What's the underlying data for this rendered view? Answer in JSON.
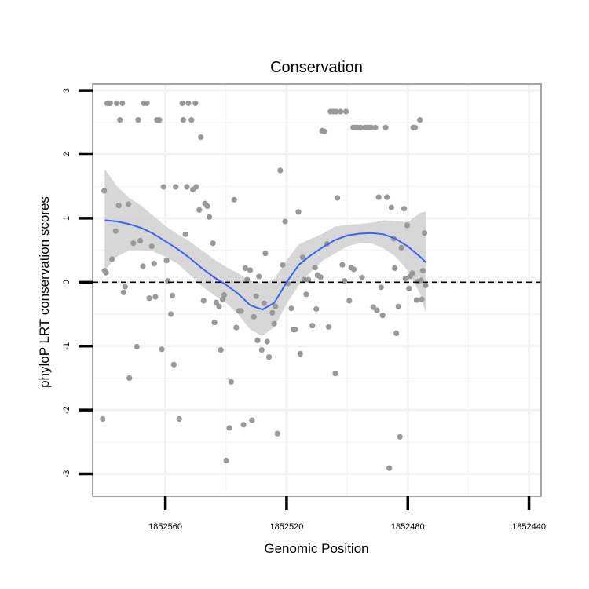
{
  "chart_data": {
    "type": "scatter",
    "title": "Conservation",
    "xlabel": "Genomic Position",
    "ylabel": "phyloP LRT conservation scores",
    "x_reversed": true,
    "xlim": [
      1852584,
      1852436
    ],
    "ylim": [
      -3.35,
      3.1
    ],
    "x_ticks": [
      1852560,
      1852520,
      1852480,
      1852440
    ],
    "y_ticks": [
      -3,
      -2,
      -1,
      0,
      1,
      2,
      3
    ],
    "reference_line": {
      "y": 0,
      "style": "dashed"
    },
    "colors": {
      "points": "#999999",
      "smooth_line": "#3366ff",
      "ribbon": "#d0d0d0",
      "panel_border": "#888888",
      "grid": "#f2f2f2",
      "ticks": "#000000"
    },
    "points": [
      [
        1852580.7,
        -2.14
      ],
      [
        1852580.2,
        1.43
      ],
      [
        1852580.0,
        0.18
      ],
      [
        1852579.6,
        0.15
      ],
      [
        1852579.2,
        2.8
      ],
      [
        1852578.6,
        2.8
      ],
      [
        1852578.2,
        2.8
      ],
      [
        1852577.6,
        0.36
      ],
      [
        1852576.4,
        0.8
      ],
      [
        1852576.1,
        2.8
      ],
      [
        1852575.4,
        1.2
      ],
      [
        1852575.0,
        2.54
      ],
      [
        1852574.2,
        2.8
      ],
      [
        1852573.8,
        -0.16
      ],
      [
        1852573.3,
        -0.07
      ],
      [
        1852572.2,
        1.22
      ],
      [
        1852571.9,
        -1.5
      ],
      [
        1852570.6,
        0.61
      ],
      [
        1852569.4,
        -1.01
      ],
      [
        1852569.0,
        2.54
      ],
      [
        1852568.3,
        0.65
      ],
      [
        1852567.4,
        0.25
      ],
      [
        1852567.1,
        2.8
      ],
      [
        1852566.1,
        2.8
      ],
      [
        1852565.3,
        -0.25
      ],
      [
        1852564.5,
        0.56
      ],
      [
        1852563.7,
        0.29
      ],
      [
        1852563.3,
        -0.23
      ],
      [
        1852562.8,
        2.54
      ],
      [
        1852562.0,
        2.54
      ],
      [
        1852561.2,
        -1.05
      ],
      [
        1852560.6,
        1.49
      ],
      [
        1852559.6,
        0.34
      ],
      [
        1852559.2,
        0.02
      ],
      [
        1852558.2,
        -0.5
      ],
      [
        1852557.7,
        -0.21
      ],
      [
        1852557.2,
        -1.29
      ],
      [
        1852556.6,
        1.49
      ],
      [
        1852555.4,
        -2.14
      ],
      [
        1852554.4,
        2.8
      ],
      [
        1852554.1,
        2.54
      ],
      [
        1852553.4,
        0.75
      ],
      [
        1852552.9,
        1.49
      ],
      [
        1852552.4,
        2.8
      ],
      [
        1852551.4,
        2.54
      ],
      [
        1852550.9,
        1.45
      ],
      [
        1852550.1,
        2.8
      ],
      [
        1852549.8,
        1.49
      ],
      [
        1852548.8,
        1.13
      ],
      [
        1852548.3,
        2.27
      ],
      [
        1852547.4,
        -0.29
      ],
      [
        1852546.9,
        1.23
      ],
      [
        1852546.1,
        1.19
      ],
      [
        1852545.5,
        1.02
      ],
      [
        1852544.3,
        0.61
      ],
      [
        1852543.8,
        -0.63
      ],
      [
        1852543.2,
        -0.32
      ],
      [
        1852542.3,
        -0.38
      ],
      [
        1852541.7,
        -1.06
      ],
      [
        1852541.1,
        -0.27
      ],
      [
        1852540.6,
        -0.2
      ],
      [
        1852539.9,
        -2.79
      ],
      [
        1852538.9,
        -2.28
      ],
      [
        1852538.3,
        -1.56
      ],
      [
        1852537.3,
        1.29
      ],
      [
        1852536.6,
        -0.71
      ],
      [
        1852535.7,
        -0.45
      ],
      [
        1852535.0,
        -0.45
      ],
      [
        1852534.2,
        -2.23
      ],
      [
        1852533.6,
        0.22
      ],
      [
        1852533.0,
        0.04
      ],
      [
        1852532.0,
        0.19
      ],
      [
        1852531.4,
        -2.16
      ],
      [
        1852530.8,
        -0.54
      ],
      [
        1852530.0,
        -0.22
      ],
      [
        1852529.6,
        -0.91
      ],
      [
        1852529.1,
        0.09
      ],
      [
        1852528.2,
        -1.06
      ],
      [
        1852527.4,
        -0.33
      ],
      [
        1852527.0,
        0.45
      ],
      [
        1852526.4,
        -0.93
      ],
      [
        1852525.8,
        -1.17
      ],
      [
        1852524.7,
        -0.48
      ],
      [
        1852524.1,
        -0.65
      ],
      [
        1852523.7,
        -0.38
      ],
      [
        1852523.0,
        -2.37
      ],
      [
        1852522.1,
        1.75
      ],
      [
        1852521.3,
        0.27
      ],
      [
        1852520.5,
        0.95
      ],
      [
        1852519.6,
        -0.02
      ],
      [
        1852518.4,
        -0.41
      ],
      [
        1852517.8,
        -0.74
      ],
      [
        1852517.1,
        -0.74
      ],
      [
        1852516.1,
        1.1
      ],
      [
        1852515.5,
        -1.12
      ],
      [
        1852514.7,
        0.39
      ],
      [
        1852514.1,
        0.04
      ],
      [
        1852513.5,
        -0.19
      ],
      [
        1852512.8,
        0.04
      ],
      [
        1852511.5,
        -0.68
      ],
      [
        1852510.6,
        0.23
      ],
      [
        1852510.2,
        -0.42
      ],
      [
        1852509.8,
        0.11
      ],
      [
        1852508.8,
        0.08
      ],
      [
        1852508.3,
        2.37
      ],
      [
        1852507.6,
        2.36
      ],
      [
        1852506.6,
        0.6
      ],
      [
        1852506.1,
        -0.7
      ],
      [
        1852505.5,
        2.67
      ],
      [
        1852504.5,
        2.67
      ],
      [
        1852503.9,
        -1.43
      ],
      [
        1852503.6,
        2.67
      ],
      [
        1852503.2,
        1.32
      ],
      [
        1852502.2,
        2.67
      ],
      [
        1852501.6,
        0.27
      ],
      [
        1852500.9,
        0.02
      ],
      [
        1852500.4,
        2.67
      ],
      [
        1852499.3,
        -0.29
      ],
      [
        1852498.7,
        0.23
      ],
      [
        1852498.0,
        2.42
      ],
      [
        1852497.8,
        0.2
      ],
      [
        1852497.2,
        2.42
      ],
      [
        1852496.5,
        2.42
      ],
      [
        1852495.6,
        2.42
      ],
      [
        1852495.1,
        0.07
      ],
      [
        1852494.2,
        2.42
      ],
      [
        1852493.4,
        2.42
      ],
      [
        1852492.7,
        2.42
      ],
      [
        1852492.1,
        2.42
      ],
      [
        1852491.4,
        -0.39
      ],
      [
        1852490.7,
        2.42
      ],
      [
        1852490.2,
        -0.44
      ],
      [
        1852489.6,
        1.33
      ],
      [
        1852488.8,
        -0.08
      ],
      [
        1852488.3,
        -0.52
      ],
      [
        1852487.3,
        2.42
      ],
      [
        1852486.9,
        1.33
      ],
      [
        1852486.1,
        -2.91
      ],
      [
        1852485.4,
        1.17
      ],
      [
        1852484.6,
        0.68
      ],
      [
        1852484.3,
        0.22
      ],
      [
        1852483.8,
        -0.8
      ],
      [
        1852483.1,
        -0.38
      ],
      [
        1852482.6,
        -2.42
      ],
      [
        1852482.1,
        0.54
      ],
      [
        1852481.2,
        1.15
      ],
      [
        1852480.8,
        0.06
      ],
      [
        1852480.2,
        0.89
      ],
      [
        1852479.6,
        -0.1
      ],
      [
        1852479.2,
        0.09
      ],
      [
        1852478.5,
        0.14
      ],
      [
        1852478.2,
        2.42
      ],
      [
        1852477.6,
        2.42
      ],
      [
        1852477.1,
        -0.28
      ],
      [
        1852476.6,
        0.01
      ],
      [
        1852476.0,
        2.54
      ],
      [
        1852475.6,
        0.03
      ],
      [
        1852475.4,
        -0.27
      ],
      [
        1852475.0,
        0.18
      ],
      [
        1852474.5,
        0.77
      ],
      [
        1852474.1,
        -0.05
      ]
    ],
    "smooth": {
      "x": [
        1852580,
        1852576,
        1852572,
        1852568,
        1852564,
        1852560,
        1852556,
        1852552,
        1852548,
        1852544,
        1852540,
        1852536,
        1852532,
        1852528,
        1852524,
        1852520,
        1852516,
        1852512,
        1852508,
        1852504,
        1852500,
        1852496,
        1852492,
        1852488,
        1852484,
        1852480,
        1852476,
        1852474
      ],
      "y": [
        0.97,
        0.95,
        0.91,
        0.85,
        0.76,
        0.64,
        0.52,
        0.38,
        0.22,
        0.08,
        -0.04,
        -0.18,
        -0.36,
        -0.43,
        -0.32,
        0.0,
        0.27,
        0.42,
        0.55,
        0.66,
        0.73,
        0.76,
        0.77,
        0.75,
        0.68,
        0.56,
        0.4,
        0.31
      ],
      "lo": [
        0.18,
        0.4,
        0.5,
        0.5,
        0.48,
        0.4,
        0.29,
        0.12,
        -0.06,
        -0.2,
        -0.32,
        -0.5,
        -0.74,
        -0.84,
        -0.7,
        -0.34,
        -0.05,
        0.16,
        0.34,
        0.45,
        0.56,
        0.61,
        0.61,
        0.53,
        0.4,
        0.18,
        -0.18,
        -0.49
      ],
      "hi": [
        1.77,
        1.5,
        1.32,
        1.2,
        1.04,
        0.88,
        0.75,
        0.64,
        0.5,
        0.36,
        0.24,
        0.14,
        0.02,
        -0.02,
        0.06,
        0.34,
        0.59,
        0.68,
        0.76,
        0.87,
        0.9,
        0.91,
        0.93,
        0.97,
        0.96,
        0.94,
        1.08,
        1.11
      ]
    }
  }
}
